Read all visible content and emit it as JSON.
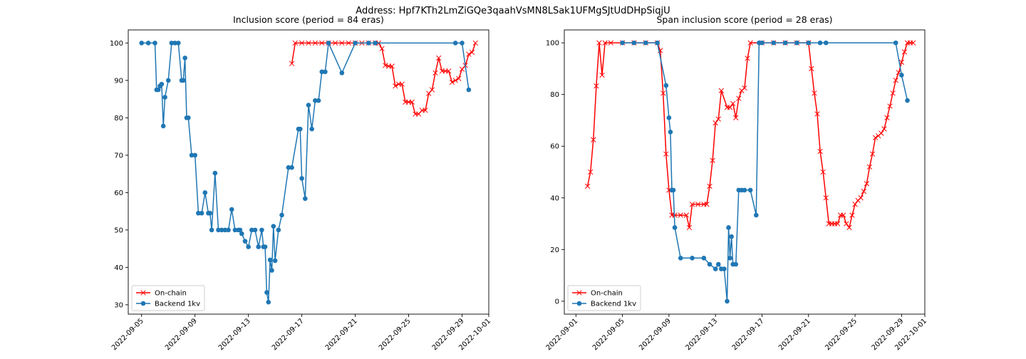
{
  "suptitle": "Address: Hpf7KTh2LmZiGQe3qaahVsMN8LSak1UFMgSJtUdDHpSiqjU",
  "chart_data": [
    {
      "type": "line",
      "title": "Inclusion score (period = 84 eras)",
      "xlabel": "",
      "ylabel": "",
      "xlim": [
        "2022-09-04",
        "2022-10-01"
      ],
      "ylim": [
        27.5,
        103.5
      ],
      "xticks": [
        "2022-09-05",
        "2022-09-09",
        "2022-09-13",
        "2022-09-17",
        "2022-09-21",
        "2022-09-25",
        "2022-09-29",
        "2022-10-01"
      ],
      "yticks": [
        30,
        40,
        50,
        60,
        70,
        80,
        90,
        100
      ],
      "grid": false,
      "legend": "lower-left",
      "series": [
        {
          "name": "On-chain",
          "color": "#ff0000",
          "marker": "x",
          "x": [
            "2022-09-16T06:00",
            "2022-09-16T12:00",
            "2022-09-17T00:00",
            "2022-09-17T12:00",
            "2022-09-18T00:00",
            "2022-09-18T12:00",
            "2022-09-19T00:00",
            "2022-09-19T12:00",
            "2022-09-20T00:00",
            "2022-09-20T12:00",
            "2022-09-21T00:00",
            "2022-09-21T12:00",
            "2022-09-22T00:00",
            "2022-09-22T12:00",
            "2022-09-22T18:00",
            "2022-09-23T00:00",
            "2022-09-23T06:00",
            "2022-09-23T12:00",
            "2022-09-23T18:00",
            "2022-09-24T00:00",
            "2022-09-24T06:00",
            "2022-09-24T12:00",
            "2022-09-24T18:00",
            "2022-09-25T00:00",
            "2022-09-25T06:00",
            "2022-09-25T12:00",
            "2022-09-25T18:00",
            "2022-09-26T00:00",
            "2022-09-26T06:00",
            "2022-09-26T12:00",
            "2022-09-26T18:00",
            "2022-09-27T00:00",
            "2022-09-27T06:00",
            "2022-09-27T12:00",
            "2022-09-27T18:00",
            "2022-09-28T00:00",
            "2022-09-28T06:00",
            "2022-09-28T12:00",
            "2022-09-28T18:00",
            "2022-09-29T00:00",
            "2022-09-29T06:00",
            "2022-09-29T12:00",
            "2022-09-29T18:00",
            "2022-09-30T00:00"
          ],
          "y": [
            94.5,
            100,
            100,
            100,
            100,
            100,
            100,
            100,
            100,
            100,
            100,
            100,
            100,
            100,
            100,
            98.5,
            94,
            93.8,
            93.8,
            88.5,
            89,
            89,
            84.2,
            84.2,
            84.2,
            81,
            81,
            82,
            82,
            86.5,
            87.5,
            92,
            96,
            92.5,
            92.5,
            92.5,
            89.5,
            90,
            90.5,
            93,
            94,
            97,
            97.5,
            100
          ]
        },
        {
          "name": "Backend 1kv",
          "color": "#1f77b4",
          "marker": "o",
          "x": [
            "2022-09-05T00:00",
            "2022-09-05T12:00",
            "2022-09-06T00:00",
            "2022-09-06T03:00",
            "2022-09-06T06:00",
            "2022-09-06T09:00",
            "2022-09-06T12:00",
            "2022-09-06T15:00",
            "2022-09-06T18:00",
            "2022-09-07T00:00",
            "2022-09-07T06:00",
            "2022-09-07T12:00",
            "2022-09-07T18:00",
            "2022-09-08T00:00",
            "2022-09-08T03:00",
            "2022-09-08T06:00",
            "2022-09-08T09:00",
            "2022-09-08T12:00",
            "2022-09-08T18:00",
            "2022-09-09T00:00",
            "2022-09-09T06:00",
            "2022-09-09T12:00",
            "2022-09-09T18:00",
            "2022-09-10T00:00",
            "2022-09-10T03:00",
            "2022-09-10T06:00",
            "2022-09-10T12:00",
            "2022-09-10T18:00",
            "2022-09-11T00:00",
            "2022-09-11T06:00",
            "2022-09-11T12:00",
            "2022-09-11T18:00",
            "2022-09-12T00:00",
            "2022-09-12T06:00",
            "2022-09-12T09:00",
            "2022-09-12T12:00",
            "2022-09-12T18:00",
            "2022-09-13T00:00",
            "2022-09-13T06:00",
            "2022-09-13T12:00",
            "2022-09-13T18:00",
            "2022-09-14T00:00",
            "2022-09-14T03:00",
            "2022-09-14T06:00",
            "2022-09-14T09:00",
            "2022-09-14T12:00",
            "2022-09-14T15:00",
            "2022-09-14T18:00",
            "2022-09-14T21:00",
            "2022-09-15T00:00",
            "2022-09-15T06:00",
            "2022-09-15T12:00",
            "2022-09-16T00:00",
            "2022-09-16T06:00",
            "2022-09-16T18:00",
            "2022-09-16T21:00",
            "2022-09-17T00:00",
            "2022-09-17T06:00",
            "2022-09-17T12:00",
            "2022-09-17T18:00",
            "2022-09-18T00:00",
            "2022-09-18T06:00",
            "2022-09-18T12:00",
            "2022-09-18T18:00",
            "2022-09-19T00:00",
            "2022-09-20T00:00",
            "2022-09-21T00:00",
            "2022-09-22T00:00",
            "2022-09-22T12:00",
            "2022-09-28T12:00",
            "2022-09-29T00:00",
            "2022-09-29T12:00"
          ],
          "y": [
            100,
            100,
            100,
            87.5,
            87.5,
            88.5,
            89,
            77.8,
            85.5,
            90,
            100,
            100,
            100,
            90,
            90,
            96,
            80,
            80,
            70,
            70,
            54.5,
            54.5,
            60,
            54.5,
            54.5,
            50,
            65.2,
            50,
            50,
            50,
            50,
            55.5,
            50,
            50,
            50,
            49,
            47,
            45.5,
            50,
            50,
            45.5,
            50,
            45.5,
            45.5,
            33.3,
            30.7,
            42,
            39.2,
            51,
            41.8,
            50,
            54,
            66.7,
            66.7,
            77,
            77,
            63.8,
            58.4,
            83.4,
            77,
            84.6,
            84.6,
            92.3,
            92.3,
            100,
            92,
            100,
            100,
            100,
            100,
            100,
            87.5
          ]
        }
      ]
    },
    {
      "type": "line",
      "title": "Span inclusion score (period = 28 eras)",
      "xlabel": "",
      "ylabel": "",
      "xlim": [
        "2022-08-31",
        "2022-10-01"
      ],
      "ylim": [
        -5,
        105
      ],
      "xticks": [
        "2022-09-01",
        "2022-09-05",
        "2022-09-09",
        "2022-09-13",
        "2022-09-17",
        "2022-09-21",
        "2022-09-25",
        "2022-09-29",
        "2022-10-01"
      ],
      "yticks": [
        0,
        20,
        40,
        60,
        80,
        100
      ],
      "grid": false,
      "legend": "lower-left",
      "series": [
        {
          "name": "On-chain",
          "color": "#ff0000",
          "marker": "x",
          "x": [
            "2022-09-02T00:00",
            "2022-09-02T06:00",
            "2022-09-02T12:00",
            "2022-09-02T18:00",
            "2022-09-03T00:00",
            "2022-09-03T06:00",
            "2022-09-03T12:00",
            "2022-09-04T00:00",
            "2022-09-05T00:00",
            "2022-09-06T00:00",
            "2022-09-07T00:00",
            "2022-09-08T00:00",
            "2022-09-08T06:00",
            "2022-09-08T12:00",
            "2022-09-08T18:00",
            "2022-09-09T00:00",
            "2022-09-09T06:00",
            "2022-09-09T12:00",
            "2022-09-10T00:00",
            "2022-09-10T12:00",
            "2022-09-10T18:00",
            "2022-09-11T00:00",
            "2022-09-11T12:00",
            "2022-09-12T00:00",
            "2022-09-12T06:00",
            "2022-09-12T12:00",
            "2022-09-12T18:00",
            "2022-09-13T00:00",
            "2022-09-13T06:00",
            "2022-09-13T12:00",
            "2022-09-14T00:00",
            "2022-09-14T06:00",
            "2022-09-14T12:00",
            "2022-09-14T18:00",
            "2022-09-15T00:00",
            "2022-09-15T06:00",
            "2022-09-15T12:00",
            "2022-09-15T18:00",
            "2022-09-16T00:00",
            "2022-09-17T00:00",
            "2022-09-18T00:00",
            "2022-09-19T00:00",
            "2022-09-20T00:00",
            "2022-09-21T00:00",
            "2022-09-21T06:00",
            "2022-09-21T12:00",
            "2022-09-21T18:00",
            "2022-09-22T00:00",
            "2022-09-22T06:00",
            "2022-09-22T12:00",
            "2022-09-22T18:00",
            "2022-09-23T00:00",
            "2022-09-23T06:00",
            "2022-09-23T12:00",
            "2022-09-23T18:00",
            "2022-09-24T00:00",
            "2022-09-24T06:00",
            "2022-09-24T12:00",
            "2022-09-24T18:00",
            "2022-09-25T00:00",
            "2022-09-25T06:00",
            "2022-09-25T12:00",
            "2022-09-25T18:00",
            "2022-09-26T00:00",
            "2022-09-26T06:00",
            "2022-09-26T12:00",
            "2022-09-26T18:00",
            "2022-09-27T00:00",
            "2022-09-27T06:00",
            "2022-09-27T12:00",
            "2022-09-27T18:00",
            "2022-09-28T00:00",
            "2022-09-28T06:00",
            "2022-09-28T12:00",
            "2022-09-28T18:00",
            "2022-09-29T00:00",
            "2022-09-29T06:00",
            "2022-09-29T12:00",
            "2022-09-29T18:00",
            "2022-09-30T00:00"
          ],
          "y": [
            44.5,
            50,
            62.5,
            83.3,
            100,
            87.5,
            100,
            100,
            100,
            100,
            100,
            100,
            97,
            80.5,
            57,
            43,
            33.3,
            33.3,
            33.3,
            33.3,
            28.5,
            37.5,
            37.5,
            37.5,
            37.5,
            44.5,
            54.5,
            69,
            70.5,
            81.5,
            75,
            75,
            76.5,
            71,
            78.5,
            81.5,
            82.5,
            94,
            100,
            100,
            100,
            100,
            100,
            100,
            90,
            80.5,
            72.5,
            58,
            50,
            40,
            30,
            30,
            30,
            30,
            33.3,
            33.3,
            30,
            28.5,
            33.3,
            37.5,
            39,
            40,
            42.5,
            45.5,
            52,
            57,
            63.3,
            64,
            65,
            66.7,
            71,
            75.5,
            80.5,
            85.5,
            88.5,
            92.5,
            96.5,
            100,
            100,
            100
          ]
        },
        {
          "name": "Backend 1kv",
          "color": "#1f77b4",
          "marker": "o",
          "x": [
            "2022-09-05T00:00",
            "2022-09-06T00:00",
            "2022-09-07T00:00",
            "2022-09-08T00:00",
            "2022-09-08T18:00",
            "2022-09-09T00:00",
            "2022-09-09T03:00",
            "2022-09-09T06:00",
            "2022-09-09T09:00",
            "2022-09-09T12:00",
            "2022-09-10T00:00",
            "2022-09-11T00:00",
            "2022-09-12T00:00",
            "2022-09-12T12:00",
            "2022-09-13T00:00",
            "2022-09-13T06:00",
            "2022-09-13T12:00",
            "2022-09-13T18:00",
            "2022-09-14T00:00",
            "2022-09-14T03:00",
            "2022-09-14T06:00",
            "2022-09-14T09:00",
            "2022-09-14T12:00",
            "2022-09-14T18:00",
            "2022-09-15T00:00",
            "2022-09-15T06:00",
            "2022-09-15T12:00",
            "2022-09-16T00:00",
            "2022-09-16T12:00",
            "2022-09-16T18:00",
            "2022-09-17T00:00",
            "2022-09-18T00:00",
            "2022-09-19T00:00",
            "2022-09-20T00:00",
            "2022-09-21T00:00",
            "2022-09-22T00:00",
            "2022-09-22T12:00",
            "2022-09-28T12:00",
            "2022-09-29T00:00",
            "2022-09-29T12:00"
          ],
          "y": [
            100,
            100,
            100,
            100,
            83.5,
            71,
            65.5,
            43,
            43,
            28.5,
            16.7,
            16.7,
            16.7,
            14.3,
            12.5,
            14.3,
            12.5,
            12.5,
            0,
            28.5,
            16.7,
            25,
            14.3,
            14.3,
            43,
            43,
            43,
            43,
            33.3,
            100,
            100,
            100,
            100,
            100,
            100,
            100,
            100,
            100,
            87.5,
            77.7
          ]
        }
      ]
    }
  ]
}
